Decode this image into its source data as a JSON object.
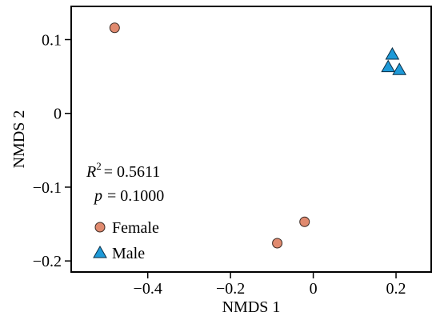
{
  "chart_data": {
    "type": "scatter",
    "xlabel": "NMDS 1",
    "ylabel": "NMDS 2",
    "xlim": [
      -0.585,
      0.285
    ],
    "ylim": [
      -0.215,
      0.145
    ],
    "x_ticks": [
      -0.4,
      -0.2,
      0,
      0.2
    ],
    "x_tick_labels": [
      "−0.4",
      "−0.2",
      "0",
      "0.2"
    ],
    "y_ticks": [
      0.1,
      0,
      -0.1,
      -0.2
    ],
    "y_tick_labels": [
      "0.1",
      "0",
      "−0.1",
      "−0.2"
    ],
    "grid": false,
    "legend_placement": "bottom-left",
    "series": [
      {
        "name": "Female",
        "marker": "circle",
        "color": "#E08A6F",
        "points": [
          {
            "x": -0.48,
            "y": 0.116
          },
          {
            "x": -0.021,
            "y": -0.147
          },
          {
            "x": -0.087,
            "y": -0.176
          }
        ]
      },
      {
        "name": "Male",
        "marker": "triangle",
        "color": "#1E9AD8",
        "points": [
          {
            "x": 0.191,
            "y": 0.08
          },
          {
            "x": 0.181,
            "y": 0.063
          },
          {
            "x": 0.208,
            "y": 0.059
          }
        ]
      }
    ],
    "annotations": {
      "r2_symbol": "R",
      "r2_sup": "2",
      "r2_value": "= 0.5611",
      "p_symbol": "p",
      "p_value": "= 0.1000"
    }
  }
}
